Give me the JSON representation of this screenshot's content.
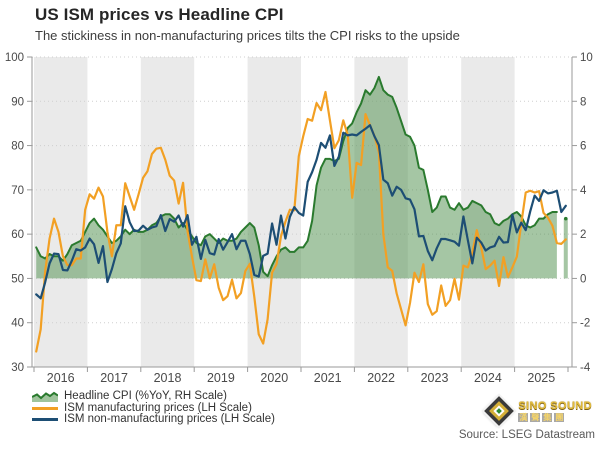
{
  "header": {
    "title": "US ISM prices vs Headline CPI",
    "subtitle": "The stickiness in non-manufacturing prices tilts the CPI risks to the upside"
  },
  "source": "Source: LSEG Datastream",
  "logo": {
    "name": "SINO SOUND",
    "chinese": "漢聲集團"
  },
  "colors": {
    "cpi_line": "#2a7a2e",
    "cpi_fill": "rgba(76,141,74,0.5)",
    "ism_manufacturing": "#f2a024",
    "ism_non_manufacturing": "#1d4e74",
    "year_band": "#eaeaea",
    "gridline": "#cfcfcf",
    "axis_line": "#9a9a9a",
    "tick_text": "#4a4a4a"
  },
  "legend": [
    {
      "label": "Headline CPI (%YoY, RH Scale)",
      "swatch": "area",
      "color": "#2a7a2e",
      "fill": "#9fc49c"
    },
    {
      "label": "ISM manufacturing prices (LH Scale)",
      "swatch": "line",
      "color": "#f2a024"
    },
    {
      "label": "ISM non-manufacturing prices (LH Scale)",
      "swatch": "line",
      "color": "#1d4e74"
    }
  ],
  "chart_data": {
    "type": "area+line",
    "freq": "monthly",
    "start": "2016-01",
    "x_tick_years": [
      2016,
      2017,
      2018,
      2019,
      2020,
      2021,
      2022,
      2023,
      2024,
      2025
    ],
    "shaded_years": "even",
    "grid": "dotted-horizontal",
    "left_axis": {
      "min": 30,
      "max": 100,
      "ticks": [
        30,
        40,
        50,
        60,
        70,
        80,
        90,
        100
      ]
    },
    "right_axis": {
      "min": -4,
      "max": 10,
      "ticks": [
        -4,
        -2,
        0,
        2,
        4,
        6,
        8,
        10
      ]
    },
    "series": [
      {
        "name": "Headline CPI (%YoY, RH Scale)",
        "axis": "right",
        "style": "area",
        "baseline": 0,
        "color": "#2a7a2e",
        "fill": "rgba(76,141,74,0.5)",
        "values": [
          1.4,
          1.0,
          0.9,
          1.1,
          1.0,
          1.0,
          0.8,
          1.1,
          1.5,
          1.6,
          1.7,
          2.1,
          2.5,
          2.7,
          2.4,
          2.2,
          1.9,
          1.6,
          1.7,
          1.9,
          2.2,
          2.0,
          2.2,
          2.1,
          2.1,
          2.2,
          2.4,
          2.5,
          2.8,
          2.9,
          2.9,
          2.7,
          2.3,
          2.5,
          2.2,
          1.9,
          1.6,
          1.5,
          1.9,
          2.0,
          1.8,
          1.6,
          1.8,
          1.7,
          1.7,
          1.8,
          2.1,
          2.3,
          2.5,
          2.3,
          1.5,
          0.3,
          0.1,
          0.6,
          1.0,
          1.3,
          1.4,
          1.2,
          1.2,
          1.4,
          1.4,
          1.7,
          2.6,
          4.2,
          5.0,
          5.4,
          5.4,
          5.3,
          5.4,
          6.2,
          6.8,
          7.0,
          7.5,
          7.9,
          8.5,
          8.3,
          8.6,
          9.1,
          8.5,
          8.3,
          8.2,
          7.7,
          7.1,
          6.5,
          6.4,
          6.0,
          5.0,
          4.9,
          4.0,
          3.0,
          3.2,
          3.7,
          3.7,
          3.2,
          3.1,
          3.4,
          3.1,
          3.2,
          3.5,
          3.4,
          3.3,
          3.0,
          2.9,
          2.5,
          2.4,
          2.6,
          2.7,
          2.9,
          3.0,
          2.8,
          2.4,
          2.3,
          2.4,
          2.7,
          2.7,
          2.9,
          3.0,
          3.0,
          null,
          2.7
        ]
      },
      {
        "name": "ISM manufacturing prices (LH Scale)",
        "axis": "left",
        "style": "line",
        "color": "#f2a024",
        "values": [
          33.5,
          38.5,
          51.5,
          59.0,
          63.5,
          60.5,
          55.0,
          53.0,
          53.0,
          54.5,
          54.5,
          65.5,
          69.0,
          68.0,
          70.5,
          68.5,
          60.5,
          55.0,
          62.0,
          62.0,
          71.5,
          68.5,
          65.5,
          69.0,
          72.7,
          74.2,
          78.1,
          79.3,
          79.5,
          76.8,
          73.2,
          72.1,
          66.9,
          71.6,
          60.7,
          54.9,
          49.6,
          49.4,
          54.3,
          50.0,
          53.2,
          47.9,
          45.1,
          46.0,
          49.7,
          45.5,
          46.7,
          51.7,
          53.3,
          45.9,
          37.4,
          35.3,
          40.8,
          51.3,
          53.2,
          59.5,
          62.8,
          65.5,
          65.4,
          77.6,
          82.1,
          86.0,
          85.6,
          89.6,
          88.0,
          92.1,
          85.7,
          79.4,
          81.2,
          85.7,
          82.4,
          68.2,
          76.1,
          75.6,
          87.1,
          84.6,
          82.2,
          78.5,
          60.0,
          52.5,
          51.7,
          46.6,
          43.0,
          39.4,
          44.5,
          51.3,
          49.2,
          53.2,
          44.2,
          41.8,
          42.6,
          48.4,
          43.8,
          45.1,
          49.9,
          45.2,
          52.9,
          52.5,
          55.8,
          60.9,
          57.0,
          52.1,
          52.9,
          54.0,
          48.3,
          54.8,
          50.3,
          52.5,
          54.9,
          62.4,
          69.4,
          69.8,
          69.4,
          69.7,
          64.8,
          63.7,
          61.9,
          58.0,
          57.8,
          58.8
        ]
      },
      {
        "name": "ISM non-manufacturing prices (LH Scale)",
        "axis": "left",
        "style": "line",
        "color": "#1d4e74",
        "values": [
          46.4,
          45.5,
          49.1,
          53.4,
          55.6,
          55.5,
          51.9,
          51.8,
          54.0,
          56.6,
          56.3,
          57.0,
          59.0,
          57.7,
          53.5,
          57.3,
          49.2,
          52.1,
          55.7,
          57.9,
          66.3,
          62.7,
          60.7,
          60.8,
          61.9,
          61.0,
          61.5,
          61.8,
          64.3,
          60.7,
          63.4,
          62.8,
          64.2,
          61.7,
          64.3,
          57.6,
          59.4,
          54.4,
          58.7,
          55.7,
          55.4,
          58.9,
          56.5,
          58.2,
          60.0,
          56.6,
          58.5,
          58.5,
          55.5,
          50.8,
          50.4,
          55.1,
          55.6,
          62.4,
          57.6,
          64.2,
          59.0,
          63.9,
          66.1,
          64.8,
          64.2,
          71.8,
          74.0,
          76.8,
          80.6,
          79.5,
          82.3,
          75.4,
          77.5,
          82.9,
          82.3,
          82.5,
          82.3,
          83.1,
          83.8,
          84.6,
          82.1,
          80.1,
          72.3,
          71.5,
          68.7,
          70.7,
          70.0,
          68.1,
          67.8,
          65.6,
          59.5,
          59.6,
          56.2,
          54.1,
          56.8,
          58.9,
          58.9,
          58.6,
          58.3,
          57.4,
          64.0,
          58.6,
          53.4,
          59.2,
          58.1,
          56.3,
          57.0,
          57.3,
          59.4,
          58.1,
          58.2,
          64.4,
          60.4,
          62.6,
          60.9,
          65.1,
          68.7,
          67.5,
          69.9,
          69.2,
          69.4,
          69.8,
          65.0,
          66.4
        ]
      }
    ]
  }
}
